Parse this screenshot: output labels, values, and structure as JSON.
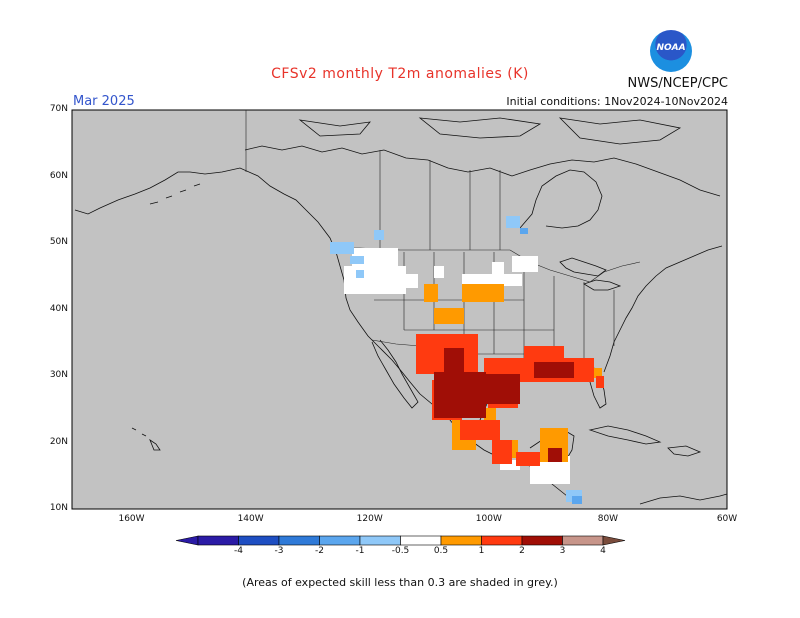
{
  "header": {
    "title": "CFSv2 monthly T2m anomalies (K)",
    "agency": "NWS/NCEP/CPC",
    "month": "Mar 2025",
    "initial_conditions": "Initial conditions: 1Nov2024-10Nov2024",
    "logo_text": "NOAA"
  },
  "axes": {
    "lat_labels": [
      "70N",
      "60N",
      "50N",
      "40N",
      "30N",
      "20N",
      "10N"
    ],
    "lon_labels": [
      "160W",
      "140W",
      "120W",
      "100W",
      "80W",
      "60W"
    ],
    "lat_range": [
      10,
      70
    ],
    "lon_range": [
      -170,
      -60
    ]
  },
  "legend": {
    "bins": [
      {
        "label": "-4",
        "color": "#2b1ba6"
      },
      {
        "label": "-3",
        "color": "#1e4ec2"
      },
      {
        "label": "-2",
        "color": "#2f7ad8"
      },
      {
        "label": "-1",
        "color": "#5ba6ee"
      },
      {
        "label": "-0.5",
        "color": "#8fc8f8"
      },
      {
        "label": "0.5",
        "color": "#ffffff"
      },
      {
        "label": "1",
        "color": "#ff9a00"
      },
      {
        "label": "2",
        "color": "#ff3a10"
      },
      {
        "label": "3",
        "color": "#a00e06"
      },
      {
        "label": "4",
        "color": "#c7958a"
      },
      {
        "label": "",
        "color": "#7a4c3c"
      }
    ],
    "tick_labels": [
      "-4",
      "-3",
      "-2",
      "-1",
      "-0.5",
      "0.5",
      "1",
      "2",
      "3",
      "4"
    ]
  },
  "footnote": "(Areas of expected skill less than 0.3 are shaded in grey.)",
  "colors": {
    "low_skill_grey": "#c2c2c2",
    "near_zero_white": "#ffffff",
    "warm_1": "#ff9a00",
    "warm_2": "#ff3a10",
    "warm_3": "#a00e06",
    "cool_1": "#8fc8f8",
    "cool_2": "#5ba6ee"
  }
}
